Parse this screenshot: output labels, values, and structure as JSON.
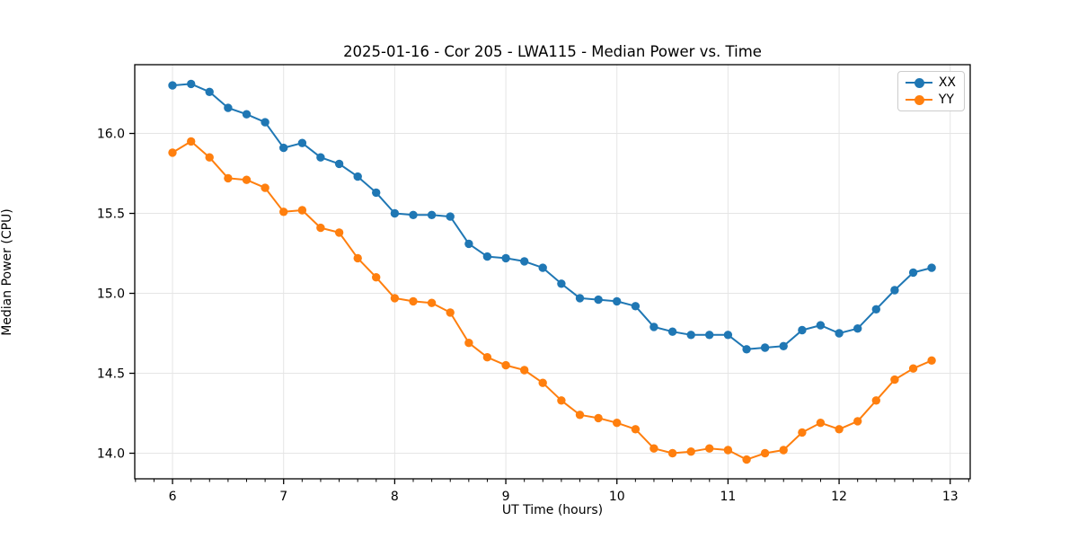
{
  "chart_data": {
    "type": "line",
    "title": "2025-01-16 - Cor 205 - LWA115 - Median Power vs. Time",
    "xlabel": "UT Time (hours)",
    "ylabel": "Median Power (CPU)",
    "legend_position": "upper right",
    "grid": true,
    "grid_color": "#e5e5e5",
    "background": "#ffffff",
    "xlim": [
      5.66,
      13.18
    ],
    "ylim": [
      13.84,
      16.43
    ],
    "xticks": [
      6,
      7,
      8,
      9,
      10,
      11,
      12,
      13
    ],
    "yticks": [
      14.0,
      14.5,
      15.0,
      15.5,
      16.0
    ],
    "x_minor_step": 0.1666667,
    "x": [
      6.0,
      6.167,
      6.333,
      6.5,
      6.667,
      6.833,
      7.0,
      7.167,
      7.333,
      7.5,
      7.667,
      7.833,
      8.0,
      8.167,
      8.333,
      8.5,
      8.667,
      8.833,
      9.0,
      9.167,
      9.333,
      9.5,
      9.667,
      9.833,
      10.0,
      10.167,
      10.333,
      10.5,
      10.667,
      10.833,
      11.0,
      11.167,
      11.333,
      11.5,
      11.667,
      11.833,
      12.0,
      12.167,
      12.333,
      12.5,
      12.667,
      12.833
    ],
    "series": [
      {
        "name": "XX",
        "color": "#1f77b4",
        "values": [
          16.3,
          16.31,
          16.26,
          16.16,
          16.12,
          16.07,
          15.91,
          15.94,
          15.85,
          15.81,
          15.73,
          15.63,
          15.5,
          15.49,
          15.49,
          15.48,
          15.31,
          15.23,
          15.22,
          15.2,
          15.16,
          15.06,
          14.97,
          14.96,
          14.95,
          14.92,
          14.79,
          14.76,
          14.74,
          14.74,
          14.74,
          14.65,
          14.66,
          14.67,
          14.77,
          14.8,
          14.75,
          14.78,
          14.9,
          15.02,
          15.13,
          15.16
        ]
      },
      {
        "name": "YY",
        "color": "#ff7f0e",
        "values": [
          15.88,
          15.95,
          15.85,
          15.72,
          15.71,
          15.66,
          15.51,
          15.52,
          15.41,
          15.38,
          15.22,
          15.1,
          14.97,
          14.95,
          14.94,
          14.88,
          14.69,
          14.6,
          14.55,
          14.52,
          14.44,
          14.33,
          14.24,
          14.22,
          14.19,
          14.15,
          14.03,
          14.0,
          14.01,
          14.03,
          14.02,
          13.96,
          14.0,
          14.02,
          14.13,
          14.19,
          14.15,
          14.2,
          14.33,
          14.46,
          14.53,
          14.58
        ]
      }
    ]
  }
}
